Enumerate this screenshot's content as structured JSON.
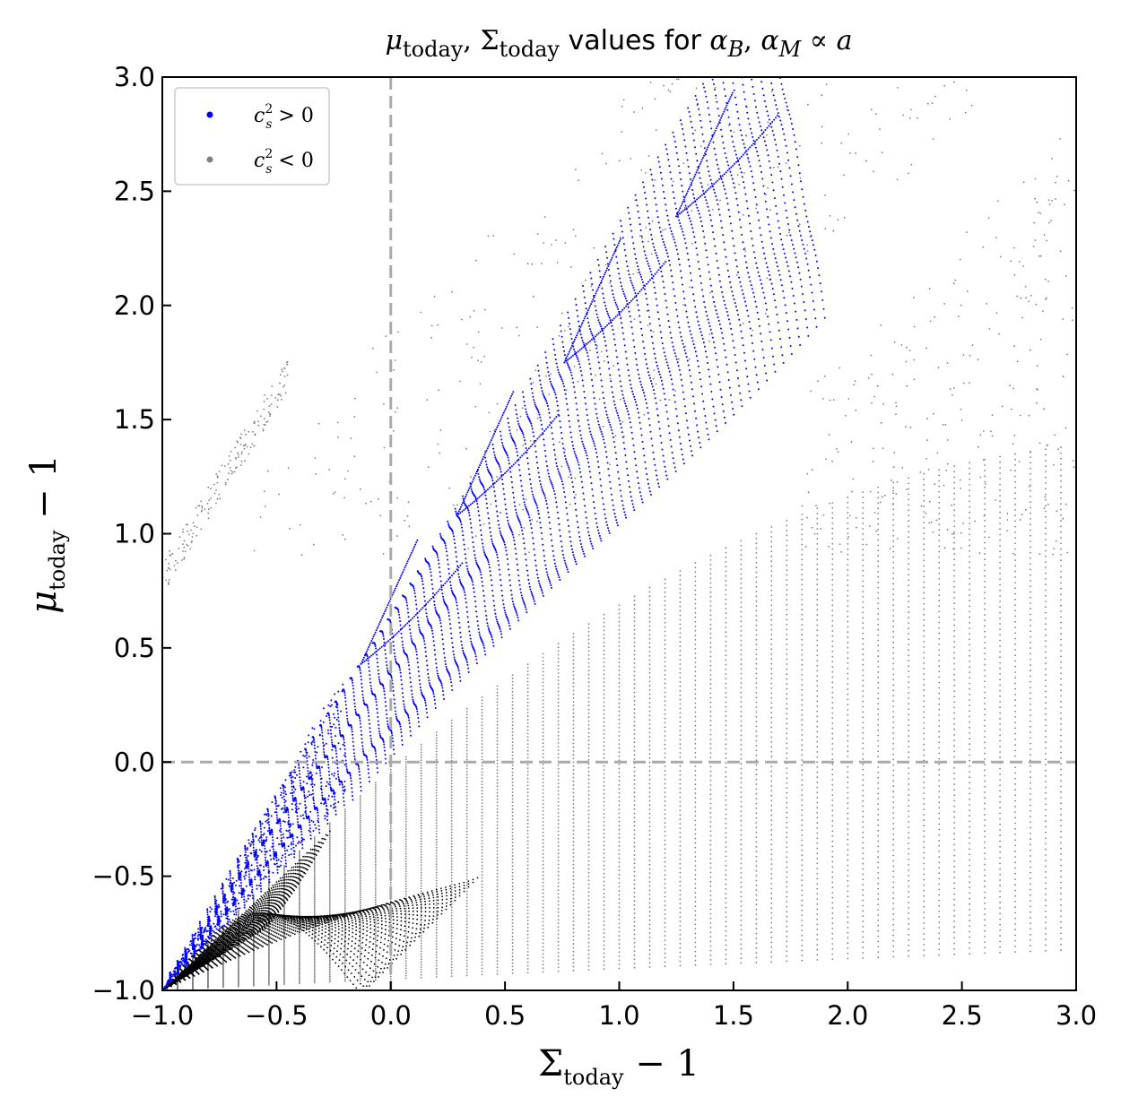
{
  "chart_data": {
    "type": "scatter",
    "title": {
      "mu": "μ",
      "mu_sub": "today",
      "comma": ", ",
      "sigma": "Σ",
      "sigma_sub": "today",
      "middle": " values for ",
      "alpha1": "α",
      "alpha1_sub": "B",
      "comma2": ", ",
      "alpha2": "α",
      "alpha2_sub": "M",
      "prop": " ∝ ",
      "a": "a"
    },
    "xlabel": {
      "main": "Σ",
      "sub": "today",
      "tail": " − 1"
    },
    "ylabel": {
      "main": "μ",
      "sub": "today",
      "tail": " − 1"
    },
    "xlim": [
      -1.0,
      3.0
    ],
    "ylim": [
      -1.0,
      3.0
    ],
    "xticks": [
      "−1.0",
      "−0.5",
      "0.0",
      "0.5",
      "1.0",
      "1.5",
      "2.0",
      "2.5",
      "3.0"
    ],
    "yticks": [
      "−1.0",
      "−0.5",
      "0.0",
      "0.5",
      "1.0",
      "1.5",
      "2.0",
      "2.5",
      "3.0"
    ],
    "reference_lines": {
      "x": 0.0,
      "y": 0.0,
      "style": "dashed",
      "color": "#aaaaaa"
    },
    "legend": {
      "placement": "top-left",
      "entries": [
        {
          "base": "c",
          "sup": "2",
          "sub": "s",
          "rel": " > 0",
          "color": "#0000ff"
        },
        {
          "base": "c",
          "sup": "2",
          "sub": "s",
          "rel": " < 0",
          "color": "#808080"
        }
      ]
    },
    "series": [
      {
        "condition": "stable",
        "color": "#0000ff",
        "description_shape": "fan above diagonal",
        "cusps": [
          [
            -0.13,
            0.43
          ],
          [
            0.29,
            1.08
          ],
          [
            0.76,
            1.75
          ],
          [
            1.25,
            2.39
          ],
          [
            1.78,
            3.0
          ]
        ]
      },
      {
        "condition": "unstable",
        "color": "#808080",
        "dense_color": "#000000"
      }
    ]
  }
}
